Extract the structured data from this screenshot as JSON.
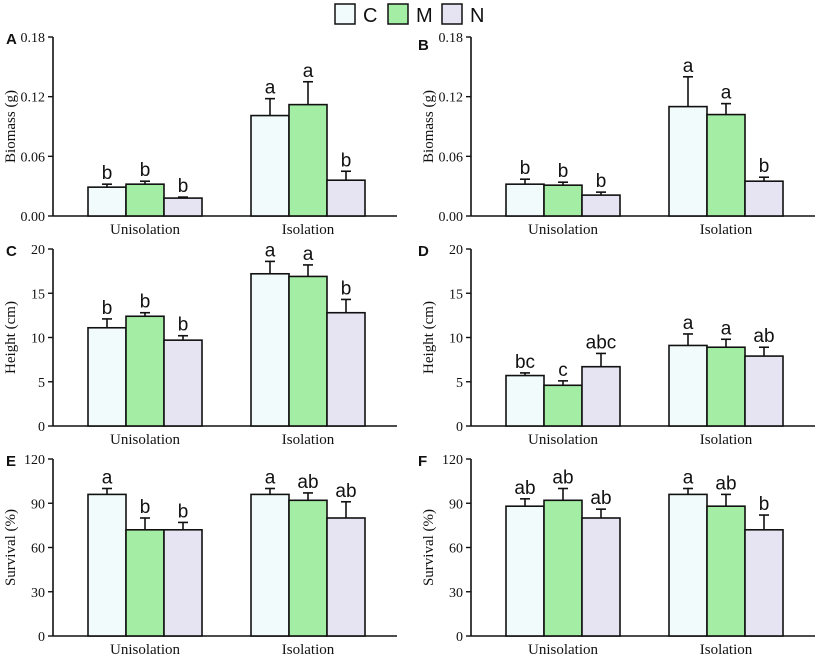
{
  "legend": {
    "items": [
      {
        "name": "C",
        "color": "#f2fbfb"
      },
      {
        "name": "M",
        "color": "#a4eda4"
      },
      {
        "name": "N",
        "color": "#e6e3f3"
      }
    ]
  },
  "chart_data": [
    {
      "panel": "A",
      "type": "bar",
      "ylabel": "Biomass (g)",
      "categories": [
        "Unisolation",
        "Isolation"
      ],
      "ylim": [
        0,
        0.18
      ],
      "yticks": [
        "0.00",
        "0.06",
        "0.12",
        "0.18"
      ],
      "series": [
        {
          "name": "C",
          "values": [
            0.029,
            0.101
          ],
          "errors": [
            0.003,
            0.017
          ],
          "letters": [
            "b",
            "a"
          ]
        },
        {
          "name": "M",
          "values": [
            0.032,
            0.112
          ],
          "errors": [
            0.003,
            0.023
          ],
          "letters": [
            "b",
            "a"
          ]
        },
        {
          "name": "N",
          "values": [
            0.018,
            0.036
          ],
          "errors": [
            0.001,
            0.009
          ],
          "letters": [
            "b",
            "b"
          ]
        }
      ]
    },
    {
      "panel": "B",
      "type": "bar",
      "ylabel": "Biomass (g)",
      "categories": [
        "Unisolation",
        "Isolation"
      ],
      "ylim": [
        0,
        0.18
      ],
      "yticks": [
        "0.00",
        "0.06",
        "0.12",
        "0.18"
      ],
      "series": [
        {
          "name": "C",
          "values": [
            0.032,
            0.11
          ],
          "errors": [
            0.005,
            0.03
          ],
          "letters": [
            "b",
            "a"
          ]
        },
        {
          "name": "M",
          "values": [
            0.031,
            0.102
          ],
          "errors": [
            0.003,
            0.011
          ],
          "letters": [
            "b",
            "a"
          ]
        },
        {
          "name": "N",
          "values": [
            0.021,
            0.035
          ],
          "errors": [
            0.003,
            0.004
          ],
          "letters": [
            "b",
            "b"
          ]
        }
      ]
    },
    {
      "panel": "C",
      "type": "bar",
      "ylabel": "Height (cm)",
      "categories": [
        "Unisolation",
        "Isolation"
      ],
      "ylim": [
        0,
        20
      ],
      "yticks": [
        "0",
        "5",
        "10",
        "15",
        "20"
      ],
      "series": [
        {
          "name": "C",
          "values": [
            11.1,
            17.2
          ],
          "errors": [
            1.0,
            1.4
          ],
          "letters": [
            "b",
            "a"
          ]
        },
        {
          "name": "M",
          "values": [
            12.4,
            16.9
          ],
          "errors": [
            0.4,
            1.3
          ],
          "letters": [
            "b",
            "a"
          ]
        },
        {
          "name": "N",
          "values": [
            9.7,
            12.8
          ],
          "errors": [
            0.5,
            1.5
          ],
          "letters": [
            "b",
            "b"
          ]
        }
      ]
    },
    {
      "panel": "D",
      "type": "bar",
      "ylabel": "Height (cm)",
      "categories": [
        "Unisolation",
        "Isolation"
      ],
      "ylim": [
        0,
        20
      ],
      "yticks": [
        "0",
        "5",
        "10",
        "15",
        "20"
      ],
      "series": [
        {
          "name": "C",
          "values": [
            5.7,
            9.1
          ],
          "errors": [
            0.3,
            1.3
          ],
          "letters": [
            "bc",
            "a"
          ]
        },
        {
          "name": "M",
          "values": [
            4.6,
            8.9
          ],
          "errors": [
            0.5,
            0.9
          ],
          "letters": [
            "c",
            "a"
          ]
        },
        {
          "name": "N",
          "values": [
            6.7,
            7.9
          ],
          "errors": [
            1.5,
            1.0
          ],
          "letters": [
            "abc",
            "ab"
          ]
        }
      ]
    },
    {
      "panel": "E",
      "type": "bar",
      "ylabel": "Survival (%)",
      "categories": [
        "Unisolation",
        "Isolation"
      ],
      "ylim": [
        0,
        120
      ],
      "yticks": [
        "0",
        "30",
        "60",
        "90",
        "120"
      ],
      "series": [
        {
          "name": "C",
          "values": [
            96,
            96
          ],
          "errors": [
            4,
            4
          ],
          "letters": [
            "a",
            "a"
          ]
        },
        {
          "name": "M",
          "values": [
            72,
            92
          ],
          "errors": [
            8,
            5
          ],
          "letters": [
            "b",
            "ab"
          ]
        },
        {
          "name": "N",
          "values": [
            72,
            80
          ],
          "errors": [
            5,
            11
          ],
          "letters": [
            "b",
            "ab"
          ]
        }
      ]
    },
    {
      "panel": "F",
      "type": "bar",
      "ylabel": "Survival (%)",
      "categories": [
        "Unisolation",
        "Isolation"
      ],
      "ylim": [
        0,
        120
      ],
      "yticks": [
        "0",
        "30",
        "60",
        "90",
        "120"
      ],
      "series": [
        {
          "name": "C",
          "values": [
            88,
            96
          ],
          "errors": [
            5,
            4
          ],
          "letters": [
            "ab",
            "a"
          ]
        },
        {
          "name": "M",
          "values": [
            92,
            88
          ],
          "errors": [
            8,
            8
          ],
          "letters": [
            "ab",
            "ab"
          ]
        },
        {
          "name": "N",
          "values": [
            80,
            72
          ],
          "errors": [
            6,
            10
          ],
          "letters": [
            "ab",
            "b"
          ]
        }
      ]
    }
  ]
}
